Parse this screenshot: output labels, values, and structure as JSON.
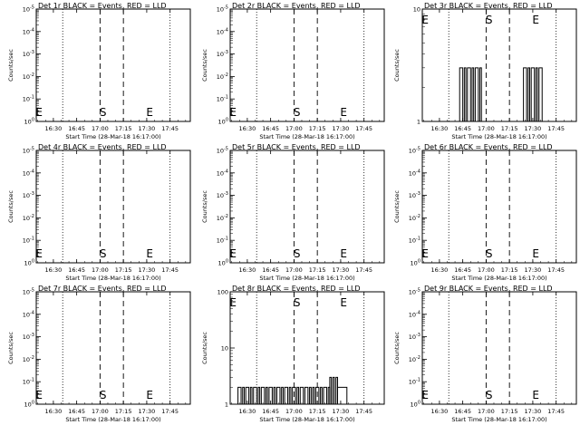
{
  "chart_data": [
    {
      "type": "line",
      "title": "Det 1r BLACK = Events, RED = LLD",
      "ylabel": "Counts/sec",
      "xlabel": "Start Time (28-Mar-18 16:17:00)",
      "scale": "log",
      "ytick_labels": [
        "10^0",
        "10^-1",
        "10^-2",
        "10^-3",
        "10^-4",
        "10^-5"
      ],
      "xtick_labels": [
        "16:30",
        "16:45",
        "17:00",
        "17:15",
        "17:30",
        "17:45"
      ],
      "markers": [
        "E",
        "S",
        "E"
      ],
      "series": [
        {
          "color": "#000000",
          "segments": []
        }
      ]
    },
    {
      "type": "line",
      "title": "Det 2r BLACK = Events, RED = LLD",
      "ylabel": "Counts/sec",
      "xlabel": "Start Time (28-Mar-18 16:17:00)",
      "scale": "log",
      "ytick_labels": [
        "10^0",
        "10^-1",
        "10^-2",
        "10^-3",
        "10^-4",
        "10^-5"
      ],
      "xtick_labels": [
        "16:30",
        "16:45",
        "17:00",
        "17:15",
        "17:30",
        "17:45"
      ],
      "markers": [
        "E",
        "S",
        "E"
      ],
      "series": [
        {
          "color": "#000000",
          "segments": []
        }
      ]
    },
    {
      "type": "line",
      "title": "Det 3r BLACK = Events, RED = LLD",
      "ylabel": "Counts/sec",
      "xlabel": "Start Time (28-Mar-18 16:17:00)",
      "scale": "log",
      "ytick_labels": [
        "1",
        "10"
      ],
      "xtick_labels": [
        "16:30",
        "16:45",
        "17:00",
        "17:15",
        "17:30",
        "17:45"
      ],
      "markers": [
        "E",
        "S",
        "E"
      ],
      "series": [
        {
          "color": "#000000",
          "segments": [
            {
              "from": "16:43",
              "to": "16:45",
              "value": 3
            },
            {
              "from": "16:46",
              "to": "16:47",
              "value": 3
            },
            {
              "from": "16:48",
              "to": "16:50",
              "value": 3
            },
            {
              "from": "16:51",
              "to": "16:52",
              "value": 3
            },
            {
              "from": "16:53",
              "to": "16:55",
              "value": 3
            },
            {
              "from": "16:56",
              "to": "16:57",
              "value": 3
            },
            {
              "from": "17:24",
              "to": "17:26",
              "value": 3
            },
            {
              "from": "17:27",
              "to": "17:28",
              "value": 3
            },
            {
              "from": "17:29",
              "to": "17:31",
              "value": 3
            },
            {
              "from": "17:32",
              "to": "17:33",
              "value": 3
            },
            {
              "from": "17:34",
              "to": "17:36",
              "value": 3
            }
          ]
        }
      ]
    },
    {
      "type": "line",
      "title": "Det 4r BLACK = Events, RED = LLD",
      "ylabel": "Counts/sec",
      "xlabel": "Start Time (28-Mar-18 16:17:00)",
      "scale": "log",
      "ytick_labels": [
        "10^0",
        "10^-1",
        "10^-2",
        "10^-3",
        "10^-4",
        "10^-5"
      ],
      "xtick_labels": [
        "16:30",
        "16:45",
        "17:00",
        "17:15",
        "17:30",
        "17:45"
      ],
      "markers": [
        "E",
        "S",
        "E"
      ],
      "series": [
        {
          "color": "#000000",
          "segments": []
        }
      ]
    },
    {
      "type": "line",
      "title": "Det 5r BLACK = Events, RED = LLD",
      "ylabel": "Counts/sec",
      "xlabel": "Start Time (28-Mar-18 16:17:00)",
      "scale": "log",
      "ytick_labels": [
        "10^0",
        "10^-1",
        "10^-2",
        "10^-3",
        "10^-4",
        "10^-5"
      ],
      "xtick_labels": [
        "16:30",
        "16:45",
        "17:00",
        "17:15",
        "17:30",
        "17:45"
      ],
      "markers": [
        "E",
        "S",
        "E"
      ],
      "series": [
        {
          "color": "#000000",
          "segments": []
        }
      ]
    },
    {
      "type": "line",
      "title": "Det 6r BLACK = Events, RED = LLD",
      "ylabel": "Counts/sec",
      "xlabel": "Start Time (28-Mar-18 16:17:00)",
      "scale": "log",
      "ytick_labels": [
        "10^0",
        "10^-1",
        "10^-2",
        "10^-3",
        "10^-4",
        "10^-5"
      ],
      "xtick_labels": [
        "16:30",
        "16:45",
        "17:00",
        "17:15",
        "17:30",
        "17:45"
      ],
      "markers": [
        "E",
        "S",
        "E"
      ],
      "series": [
        {
          "color": "#000000",
          "segments": []
        }
      ]
    },
    {
      "type": "line",
      "title": "Det 7r BLACK = Events, RED = LLD",
      "ylabel": "Counts/sec",
      "xlabel": "Start Time (28-Mar-18 16:17:00)",
      "scale": "log",
      "ytick_labels": [
        "10^0",
        "10^-1",
        "10^-2",
        "10^-3",
        "10^-4",
        "10^-5"
      ],
      "xtick_labels": [
        "16:30",
        "16:45",
        "17:00",
        "17:15",
        "17:30",
        "17:45"
      ],
      "markers": [
        "E",
        "S",
        "E"
      ],
      "series": [
        {
          "color": "#000000",
          "segments": []
        }
      ]
    },
    {
      "type": "line",
      "title": "Det 8r BLACK = Events, RED = LLD",
      "ylabel": "Counts/sec",
      "xlabel": "Start Time (28-Mar-18 16:17:00)",
      "scale": "log",
      "ytick_labels": [
        "1",
        "10",
        "100"
      ],
      "xtick_labels": [
        "16:30",
        "16:45",
        "17:00",
        "17:15",
        "17:30",
        "17:45"
      ],
      "markers": [
        "E",
        "S",
        "E"
      ],
      "series": [
        {
          "color": "#000000",
          "segments": [
            {
              "from": "16:24",
              "to": "16:26",
              "value": 2
            },
            {
              "from": "16:27",
              "to": "16:28",
              "value": 2
            },
            {
              "from": "16:29",
              "to": "16:31",
              "value": 2
            },
            {
              "from": "16:32",
              "to": "16:33",
              "value": 2
            },
            {
              "from": "16:34",
              "to": "16:36",
              "value": 2
            },
            {
              "from": "16:37",
              "to": "16:38",
              "value": 2
            },
            {
              "from": "16:39",
              "to": "16:41",
              "value": 2
            },
            {
              "from": "16:42",
              "to": "16:43",
              "value": 2
            },
            {
              "from": "16:44",
              "to": "16:46",
              "value": 2
            },
            {
              "from": "16:47",
              "to": "16:48",
              "value": 2
            },
            {
              "from": "16:49",
              "to": "16:51",
              "value": 2
            },
            {
              "from": "16:52",
              "to": "16:53",
              "value": 2
            },
            {
              "from": "16:54",
              "to": "16:56",
              "value": 2
            },
            {
              "from": "16:57",
              "to": "16:58",
              "value": 2
            },
            {
              "from": "16:59",
              "to": "17:01",
              "value": 2
            },
            {
              "from": "17:02",
              "to": "17:03",
              "value": 2
            },
            {
              "from": "17:04",
              "to": "17:06",
              "value": 2
            },
            {
              "from": "17:07",
              "to": "17:09",
              "value": 2
            },
            {
              "from": "17:10",
              "to": "17:11",
              "value": 2
            },
            {
              "from": "17:12",
              "to": "17:13",
              "value": 2
            },
            {
              "from": "17:14",
              "to": "17:16",
              "value": 2
            },
            {
              "from": "17:17",
              "to": "17:18",
              "value": 2
            },
            {
              "from": "17:19",
              "to": "17:21",
              "value": 2
            },
            {
              "from": "17:22",
              "to": "17:23",
              "value": 2
            },
            {
              "from": "17:23",
              "to": "17:24",
              "value": 3
            },
            {
              "from": "17:25",
              "to": "17:26",
              "value": 3
            },
            {
              "from": "17:27",
              "to": "17:28",
              "value": 3
            },
            {
              "from": "17:28",
              "to": "17:34",
              "value": 2
            }
          ]
        }
      ]
    },
    {
      "type": "line",
      "title": "Det 9r BLACK = Events, RED = LLD",
      "ylabel": "Counts/sec",
      "xlabel": "Start Time (28-Mar-18 16:17:00)",
      "scale": "log",
      "ytick_labels": [
        "10^0",
        "10^-1",
        "10^-2",
        "10^-3",
        "10^-4",
        "10^-5"
      ],
      "xtick_labels": [
        "16:30",
        "16:45",
        "17:00",
        "17:15",
        "17:30",
        "17:45"
      ],
      "markers": [
        "E",
        "S",
        "E"
      ],
      "series": [
        {
          "color": "#000000",
          "segments": []
        }
      ]
    }
  ]
}
